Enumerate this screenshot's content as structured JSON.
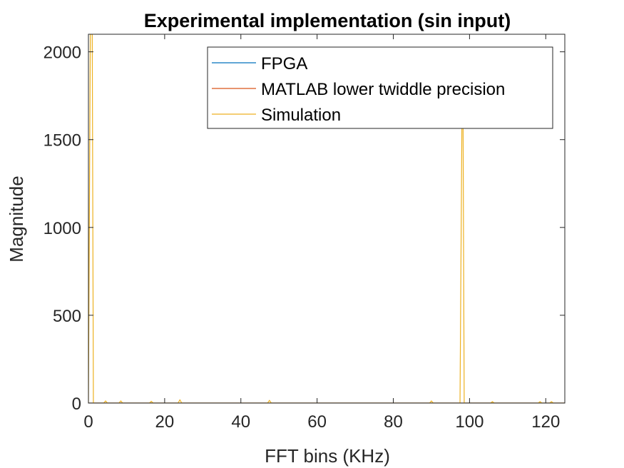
{
  "chart_data": {
    "type": "line",
    "title": "Experimental implementation (sin input)",
    "xlabel": "FFT bins (KHz)",
    "ylabel": "Magnitude",
    "xlim": [
      0,
      125
    ],
    "ylim": [
      0,
      2100
    ],
    "xticks": [
      0,
      20,
      40,
      60,
      80,
      100,
      120
    ],
    "yticks": [
      0,
      500,
      1000,
      1500,
      2000
    ],
    "grid": false,
    "legend_position": "top-right",
    "series": [
      {
        "name": "FPGA",
        "color": "#0072BD",
        "x": [
          0,
          0.5,
          1.0,
          1.5,
          125
        ],
        "y": [
          0,
          0,
          0,
          0,
          0
        ]
      },
      {
        "name": "MATLAB lower twiddle precision",
        "color": "#D95319",
        "x": [
          0,
          0.5,
          1.0,
          1.5,
          125
        ],
        "y": [
          0,
          0,
          0,
          0,
          0
        ]
      },
      {
        "name": "Simulation",
        "color": "#EDB120",
        "x": [
          0,
          0.5,
          1.0,
          1.3,
          4,
          4.5,
          5,
          8,
          8.5,
          9,
          16,
          16.5,
          17,
          23.5,
          24,
          24.5,
          47,
          47.5,
          48,
          89.5,
          90,
          90.5,
          97.5,
          98.0,
          98.3,
          98.6,
          99,
          105.5,
          106,
          106.5,
          118,
          118.5,
          119,
          121,
          121.5,
          122,
          125
        ],
        "y": [
          0,
          2100,
          2100,
          0,
          0,
          12,
          0,
          0,
          12,
          0,
          0,
          10,
          0,
          0,
          18,
          0,
          0,
          15,
          0,
          0,
          12,
          0,
          0,
          1600,
          1600,
          0,
          0,
          0,
          8,
          0,
          0,
          8,
          0,
          0,
          8,
          0,
          0
        ]
      }
    ]
  }
}
